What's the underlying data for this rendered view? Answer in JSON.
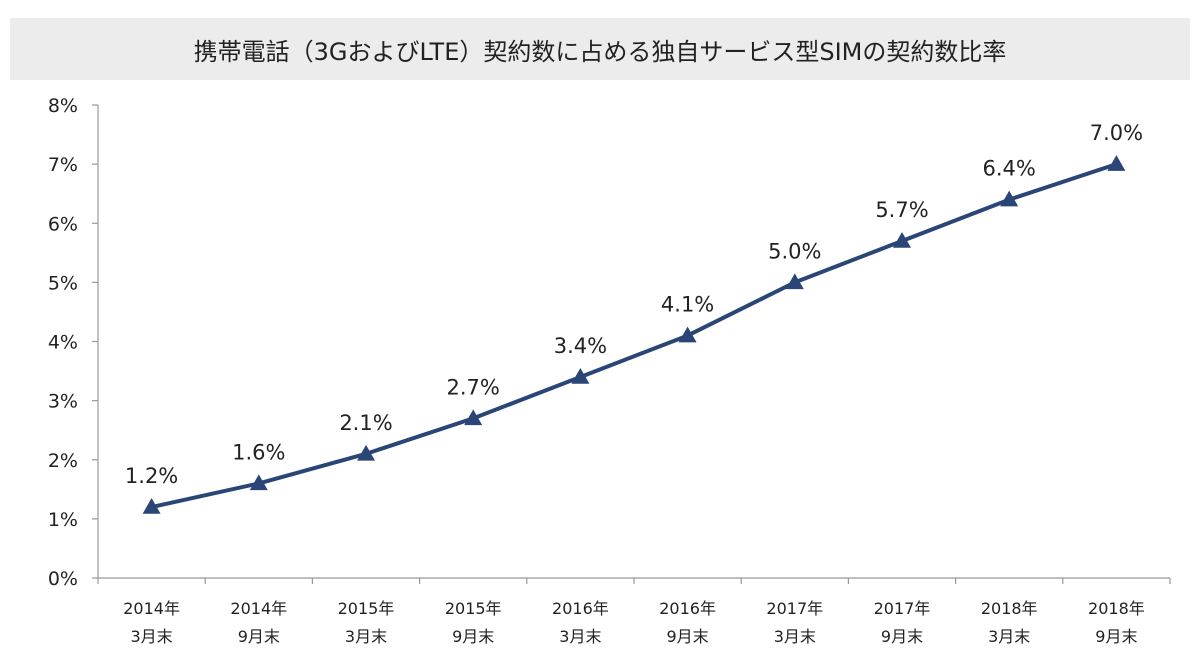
{
  "chart_data": {
    "type": "line",
    "title": "携帯電話（3GおよびLTE）契約数に占める独自サービス型SIMの契約数比率",
    "categories": [
      [
        "2014年",
        "3月末"
      ],
      [
        "2014年",
        "9月末"
      ],
      [
        "2015年",
        "3月末"
      ],
      [
        "2015年",
        "9月末"
      ],
      [
        "2016年",
        "3月末"
      ],
      [
        "2016年",
        "9月末"
      ],
      [
        "2017年",
        "3月末"
      ],
      [
        "2017年",
        "9月末"
      ],
      [
        "2018年",
        "3月末"
      ],
      [
        "2018年",
        "9月末"
      ]
    ],
    "values": [
      1.2,
      1.6,
      2.1,
      2.7,
      3.4,
      4.1,
      5.0,
      5.7,
      6.4,
      7.0
    ],
    "data_labels": [
      "1.2%",
      "1.6%",
      "2.1%",
      "2.7%",
      "3.4%",
      "4.1%",
      "5.0%",
      "5.7%",
      "6.4%",
      "7.0%"
    ],
    "ylim": [
      0,
      8
    ],
    "yticks": [
      "0%",
      "1%",
      "2%",
      "3%",
      "4%",
      "5%",
      "6%",
      "7%",
      "8%"
    ],
    "marker": "triangle",
    "grid": false,
    "legend": "none",
    "colors": {
      "line": "#2a4676",
      "title_bg": "#ececec",
      "axis": "#999999"
    }
  }
}
